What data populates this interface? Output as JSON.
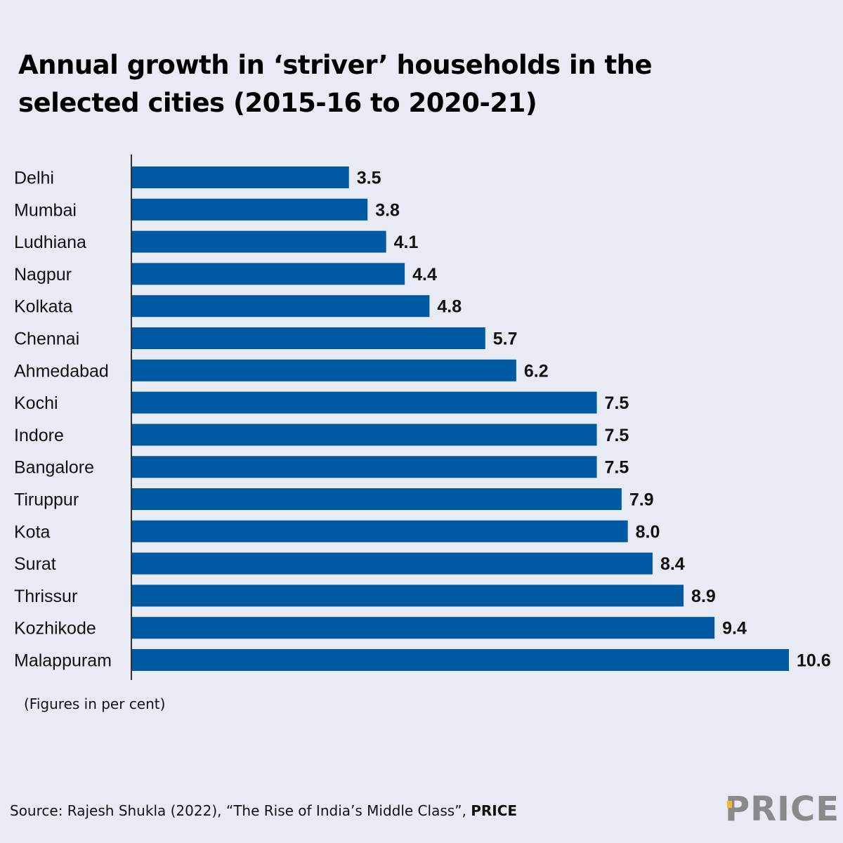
{
  "chart_data": {
    "type": "bar",
    "orientation": "horizontal",
    "title": "Annual growth in ‘striver’ households in the selected cities (2015-16 to 2020-21)",
    "title_lines": [
      "Annual growth in ‘striver’ households in the",
      "selected cities (2015-16 to 2020-21)"
    ],
    "xlabel": "",
    "ylabel": "",
    "categories": [
      "Delhi",
      "Mumbai",
      "Ludhiana",
      "Nagpur",
      "Kolkata",
      "Chennai",
      "Ahmedabad",
      "Kochi",
      "Indore",
      "Bangalore",
      "Tiruppur",
      "Kota",
      "Surat",
      "Thrissur",
      "Kozhikode",
      "Malappuram"
    ],
    "values": [
      3.5,
      3.8,
      4.1,
      4.4,
      4.8,
      5.7,
      6.2,
      7.5,
      7.5,
      7.5,
      7.9,
      8.0,
      8.4,
      8.9,
      9.4,
      10.6
    ],
    "value_labels": [
      "3.5",
      "3.8",
      "4.1",
      "4.4",
      "4.8",
      "5.7",
      "6.2",
      "7.5",
      "7.5",
      "7.5",
      "7.9",
      "8.0",
      "8.4",
      "8.9",
      "9.4",
      "10.6"
    ],
    "xlim": [
      0,
      10.6
    ],
    "grid": false,
    "bar_color": "#005aa3",
    "units_note": "(Figures in per cent)"
  },
  "footer": {
    "source_prefix": "Source: Rajesh Shukla (2022), “The Rise of India’s Middle Class”, ",
    "source_bold": "PRICE",
    "logo_text": "PRICE",
    "logo_accent_color": "#f5b731"
  }
}
